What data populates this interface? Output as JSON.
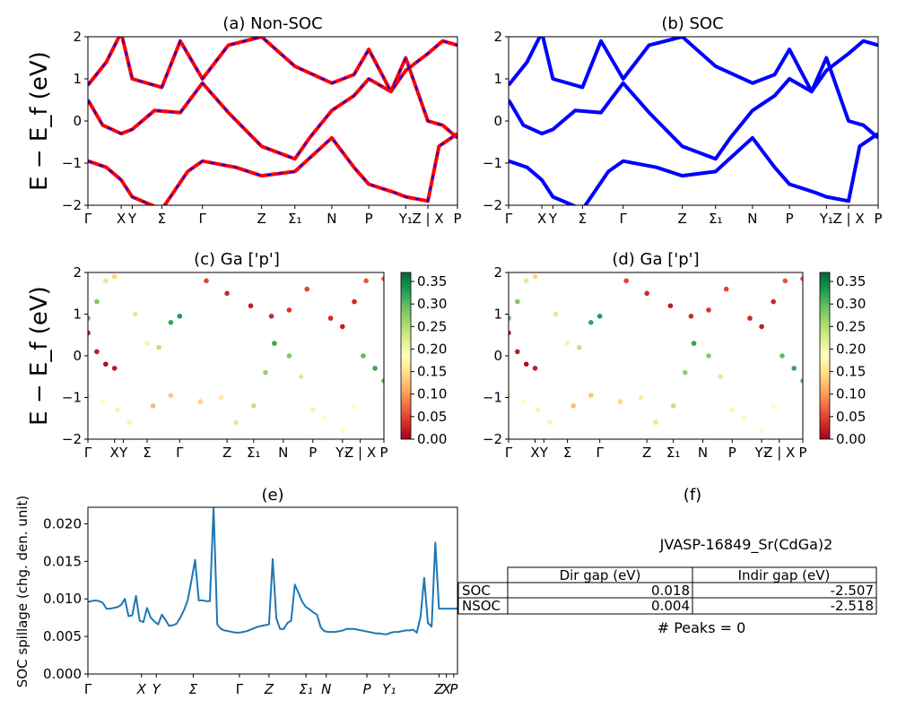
{
  "figure": {
    "title": "JVASP-16849_Sr(CdGa)2"
  },
  "path_labels": [
    "Γ",
    "X",
    "Y",
    "Σ",
    "Γ",
    "Z",
    "Σ₁",
    "N",
    "P",
    "Y₁",
    "Z | X",
    "P"
  ],
  "panel_a": {
    "title": "(a) Non-SOC",
    "ylabel": "E − E_f (eV)"
  },
  "panel_b": {
    "title": "(b) SOC"
  },
  "panel_c": {
    "title": "(c)  Ga ['p']",
    "ylabel": "E − E_f (eV)"
  },
  "panel_d": {
    "title": "(d) Ga ['p']"
  },
  "panel_e": {
    "title": "(e)",
    "ylabel": "SOC spillage (chg. den. unit)"
  },
  "panel_f": {
    "title": "(f)",
    "table_headers": [
      "",
      "Dir gap (eV)",
      "Indir gap (eV)"
    ],
    "rows": [
      {
        "label": "SOC",
        "dir_gap": "0.018",
        "indir_gap": "-2.507"
      },
      {
        "label": "NSOC",
        "dir_gap": "0.004",
        "indir_gap": "-2.518"
      }
    ],
    "peaks": "# Peaks = 0"
  },
  "colors": {
    "nonsoc_line": "#ff0000",
    "nonsoc_dash": "#0000ff",
    "soc_line": "#0000ff",
    "spillage_line": "#1f77b4"
  },
  "chart_data": [
    {
      "type": "line",
      "panel": "a",
      "ylim": [
        -2,
        2
      ],
      "yticks": [
        -2,
        -1,
        0,
        1,
        2
      ],
      "xticks": [
        0,
        0.09,
        0.12,
        0.2,
        0.31,
        0.47,
        0.56,
        0.66,
        0.76,
        0.86,
        0.92,
        1.0
      ],
      "series": [
        {
          "x": [
            0,
            0.05,
            0.09,
            0.12,
            0.2,
            0.27,
            0.31,
            0.4,
            0.47,
            0.56,
            0.66,
            0.72,
            0.76,
            0.83,
            0.86,
            0.92,
            0.95,
            1.0
          ],
          "y": [
            -0.95,
            -1.1,
            -1.4,
            -1.8,
            -2.1,
            -1.2,
            -0.95,
            -1.1,
            -1.3,
            -1.2,
            -0.4,
            -1.1,
            -1.5,
            -1.7,
            -1.8,
            -1.9,
            -0.6,
            -0.3
          ]
        },
        {
          "x": [
            0,
            0.04,
            0.09,
            0.12,
            0.18,
            0.25,
            0.31,
            0.38,
            0.47,
            0.56,
            0.6,
            0.66,
            0.72,
            0.76,
            0.82,
            0.86,
            0.92,
            0.96,
            1.0
          ],
          "y": [
            0.5,
            -0.1,
            -0.3,
            -0.2,
            0.25,
            0.2,
            0.9,
            0.2,
            -0.6,
            -0.9,
            -0.4,
            0.25,
            0.6,
            1.0,
            0.7,
            1.5,
            0.0,
            -0.1,
            -0.4
          ]
        },
        {
          "x": [
            0,
            0.05,
            0.09,
            0.12,
            0.2,
            0.25,
            0.31,
            0.38,
            0.47,
            0.56,
            0.66,
            0.72,
            0.76,
            0.82,
            0.86,
            0.92,
            0.96,
            1.0
          ],
          "y": [
            0.85,
            1.4,
            2.1,
            1.0,
            0.8,
            1.9,
            1.0,
            1.8,
            2.0,
            1.3,
            0.9,
            1.1,
            1.7,
            0.7,
            1.2,
            1.6,
            1.9,
            1.8
          ]
        }
      ]
    },
    {
      "type": "line",
      "panel": "b",
      "ylim": [
        -2,
        2
      ],
      "yticks": [
        -2,
        -1,
        0,
        1,
        2
      ],
      "xticks": [
        0,
        0.09,
        0.12,
        0.2,
        0.31,
        0.47,
        0.56,
        0.66,
        0.76,
        0.86,
        0.92,
        1.0
      ],
      "series": [
        {
          "x": [
            0,
            0.05,
            0.09,
            0.12,
            0.2,
            0.27,
            0.31,
            0.4,
            0.47,
            0.56,
            0.66,
            0.72,
            0.76,
            0.83,
            0.86,
            0.92,
            0.95,
            1.0
          ],
          "y": [
            -0.95,
            -1.1,
            -1.4,
            -1.8,
            -2.1,
            -1.2,
            -0.95,
            -1.1,
            -1.3,
            -1.2,
            -0.4,
            -1.1,
            -1.5,
            -1.7,
            -1.8,
            -1.9,
            -0.6,
            -0.3
          ]
        },
        {
          "x": [
            0,
            0.04,
            0.09,
            0.12,
            0.18,
            0.25,
            0.31,
            0.38,
            0.47,
            0.56,
            0.6,
            0.66,
            0.72,
            0.76,
            0.82,
            0.86,
            0.92,
            0.96,
            1.0
          ],
          "y": [
            0.5,
            -0.1,
            -0.3,
            -0.2,
            0.25,
            0.2,
            0.9,
            0.2,
            -0.6,
            -0.9,
            -0.4,
            0.25,
            0.6,
            1.0,
            0.7,
            1.5,
            0.0,
            -0.1,
            -0.4
          ]
        },
        {
          "x": [
            0,
            0.05,
            0.09,
            0.12,
            0.2,
            0.25,
            0.31,
            0.38,
            0.47,
            0.56,
            0.66,
            0.72,
            0.76,
            0.82,
            0.86,
            0.92,
            0.96,
            1.0
          ],
          "y": [
            0.85,
            1.4,
            2.1,
            1.0,
            0.8,
            1.9,
            1.0,
            1.8,
            2.0,
            1.3,
            0.9,
            1.1,
            1.7,
            0.7,
            1.2,
            1.6,
            1.9,
            1.8
          ]
        }
      ]
    },
    {
      "type": "scatter",
      "panel": "c",
      "ylim": [
        -2,
        2
      ],
      "yticks": [
        -2,
        -1,
        0,
        1,
        2
      ],
      "colorbar": {
        "range": [
          0,
          0.37
        ],
        "ticks": [
          0,
          0.05,
          0.1,
          0.15,
          0.2,
          0.25,
          0.3,
          0.35
        ],
        "colormap": "RdYlGn"
      },
      "points": [
        {
          "x": 0.0,
          "y": 0.55,
          "c": 0.02
        },
        {
          "x": 0.03,
          "y": 0.1,
          "c": 0.02
        },
        {
          "x": 0.06,
          "y": -0.2,
          "c": 0.01
        },
        {
          "x": 0.09,
          "y": -0.3,
          "c": 0.02
        },
        {
          "x": 0.0,
          "y": 0.9,
          "c": 0.3
        },
        {
          "x": 0.03,
          "y": 1.3,
          "c": 0.28
        },
        {
          "x": 0.06,
          "y": 1.8,
          "c": 0.22
        },
        {
          "x": 0.09,
          "y": 1.9,
          "c": 0.14
        },
        {
          "x": 0.0,
          "y": -0.95,
          "c": 0.16
        },
        {
          "x": 0.05,
          "y": -1.1,
          "c": 0.18
        },
        {
          "x": 0.1,
          "y": -1.3,
          "c": 0.2
        },
        {
          "x": 0.14,
          "y": -1.6,
          "c": 0.2
        },
        {
          "x": 0.16,
          "y": 1.0,
          "c": 0.22
        },
        {
          "x": 0.2,
          "y": 0.3,
          "c": 0.2
        },
        {
          "x": 0.24,
          "y": 0.2,
          "c": 0.24
        },
        {
          "x": 0.28,
          "y": 0.8,
          "c": 0.32
        },
        {
          "x": 0.31,
          "y": 0.95,
          "c": 0.33
        },
        {
          "x": 0.22,
          "y": -1.2,
          "c": 0.12
        },
        {
          "x": 0.28,
          "y": -0.95,
          "c": 0.13
        },
        {
          "x": 0.38,
          "y": -1.1,
          "c": 0.14
        },
        {
          "x": 0.45,
          "y": -1.0,
          "c": 0.16
        },
        {
          "x": 0.5,
          "y": -1.6,
          "c": 0.22
        },
        {
          "x": 0.56,
          "y": -1.2,
          "c": 0.24
        },
        {
          "x": 0.6,
          "y": -0.4,
          "c": 0.27
        },
        {
          "x": 0.63,
          "y": 0.3,
          "c": 0.32
        },
        {
          "x": 0.68,
          "y": 0.0,
          "c": 0.28
        },
        {
          "x": 0.72,
          "y": -0.5,
          "c": 0.22
        },
        {
          "x": 0.76,
          "y": -1.3,
          "c": 0.2
        },
        {
          "x": 0.8,
          "y": -1.5,
          "c": 0.18
        },
        {
          "x": 0.86,
          "y": -1.8,
          "c": 0.19
        },
        {
          "x": 0.9,
          "y": -1.2,
          "c": 0.19
        },
        {
          "x": 0.4,
          "y": 1.8,
          "c": 0.05
        },
        {
          "x": 0.47,
          "y": 1.5,
          "c": 0.03
        },
        {
          "x": 0.55,
          "y": 1.2,
          "c": 0.02
        },
        {
          "x": 0.62,
          "y": 0.95,
          "c": 0.03
        },
        {
          "x": 0.68,
          "y": 1.1,
          "c": 0.04
        },
        {
          "x": 0.74,
          "y": 1.6,
          "c": 0.05
        },
        {
          "x": 0.82,
          "y": 0.9,
          "c": 0.03
        },
        {
          "x": 0.86,
          "y": 0.7,
          "c": 0.02
        },
        {
          "x": 0.9,
          "y": 1.3,
          "c": 0.03
        },
        {
          "x": 0.93,
          "y": 0.0,
          "c": 0.3
        },
        {
          "x": 0.97,
          "y": -0.3,
          "c": 0.32
        },
        {
          "x": 1.0,
          "y": -0.6,
          "c": 0.3
        },
        {
          "x": 0.94,
          "y": 1.8,
          "c": 0.06
        },
        {
          "x": 1.0,
          "y": 1.85,
          "c": 0.06
        }
      ]
    },
    {
      "type": "scatter",
      "panel": "d",
      "ylim": [
        -2,
        2
      ],
      "yticks": [
        -2,
        -1,
        0,
        1,
        2
      ],
      "colorbar": {
        "range": [
          0,
          0.37
        ],
        "ticks": [
          0,
          0.05,
          0.1,
          0.15,
          0.2,
          0.25,
          0.3,
          0.35
        ],
        "colormap": "RdYlGn"
      },
      "points": [
        {
          "x": 0.0,
          "y": 0.55,
          "c": 0.02
        },
        {
          "x": 0.03,
          "y": 0.1,
          "c": 0.02
        },
        {
          "x": 0.06,
          "y": -0.2,
          "c": 0.01
        },
        {
          "x": 0.09,
          "y": -0.3,
          "c": 0.02
        },
        {
          "x": 0.0,
          "y": 0.9,
          "c": 0.3
        },
        {
          "x": 0.03,
          "y": 1.3,
          "c": 0.28
        },
        {
          "x": 0.06,
          "y": 1.8,
          "c": 0.22
        },
        {
          "x": 0.09,
          "y": 1.9,
          "c": 0.14
        },
        {
          "x": 0.0,
          "y": -0.95,
          "c": 0.16
        },
        {
          "x": 0.05,
          "y": -1.1,
          "c": 0.18
        },
        {
          "x": 0.1,
          "y": -1.3,
          "c": 0.2
        },
        {
          "x": 0.14,
          "y": -1.6,
          "c": 0.2
        },
        {
          "x": 0.16,
          "y": 1.0,
          "c": 0.22
        },
        {
          "x": 0.2,
          "y": 0.3,
          "c": 0.2
        },
        {
          "x": 0.24,
          "y": 0.2,
          "c": 0.24
        },
        {
          "x": 0.28,
          "y": 0.8,
          "c": 0.32
        },
        {
          "x": 0.31,
          "y": 0.95,
          "c": 0.33
        },
        {
          "x": 0.22,
          "y": -1.2,
          "c": 0.12
        },
        {
          "x": 0.28,
          "y": -0.95,
          "c": 0.13
        },
        {
          "x": 0.38,
          "y": -1.1,
          "c": 0.14
        },
        {
          "x": 0.45,
          "y": -1.0,
          "c": 0.16
        },
        {
          "x": 0.5,
          "y": -1.6,
          "c": 0.22
        },
        {
          "x": 0.56,
          "y": -1.2,
          "c": 0.24
        },
        {
          "x": 0.6,
          "y": -0.4,
          "c": 0.27
        },
        {
          "x": 0.63,
          "y": 0.3,
          "c": 0.32
        },
        {
          "x": 0.68,
          "y": 0.0,
          "c": 0.28
        },
        {
          "x": 0.72,
          "y": -0.5,
          "c": 0.22
        },
        {
          "x": 0.76,
          "y": -1.3,
          "c": 0.2
        },
        {
          "x": 0.8,
          "y": -1.5,
          "c": 0.18
        },
        {
          "x": 0.86,
          "y": -1.8,
          "c": 0.19
        },
        {
          "x": 0.9,
          "y": -1.2,
          "c": 0.19
        },
        {
          "x": 0.4,
          "y": 1.8,
          "c": 0.05
        },
        {
          "x": 0.47,
          "y": 1.5,
          "c": 0.03
        },
        {
          "x": 0.55,
          "y": 1.2,
          "c": 0.02
        },
        {
          "x": 0.62,
          "y": 0.95,
          "c": 0.03
        },
        {
          "x": 0.68,
          "y": 1.1,
          "c": 0.04
        },
        {
          "x": 0.74,
          "y": 1.6,
          "c": 0.05
        },
        {
          "x": 0.82,
          "y": 0.9,
          "c": 0.03
        },
        {
          "x": 0.86,
          "y": 0.7,
          "c": 0.02
        },
        {
          "x": 0.9,
          "y": 1.3,
          "c": 0.03
        },
        {
          "x": 0.93,
          "y": 0.0,
          "c": 0.3
        },
        {
          "x": 0.97,
          "y": -0.3,
          "c": 0.32
        },
        {
          "x": 1.0,
          "y": -0.6,
          "c": 0.3
        },
        {
          "x": 0.94,
          "y": 1.8,
          "c": 0.06
        },
        {
          "x": 1.0,
          "y": 1.85,
          "c": 0.06
        }
      ]
    },
    {
      "type": "line",
      "panel": "e",
      "ylim": [
        0,
        0.0222
      ],
      "yticks": [
        0.0,
        0.005,
        0.01,
        0.015,
        0.02
      ],
      "ytick_labels": [
        "0.000",
        "0.005",
        "0.010",
        "0.015",
        "0.020"
      ],
      "x": [
        0,
        0.01,
        0.02,
        0.03,
        0.04,
        0.05,
        0.06,
        0.07,
        0.08,
        0.09,
        0.1,
        0.11,
        0.12,
        0.13,
        0.14,
        0.15,
        0.16,
        0.17,
        0.18,
        0.19,
        0.2,
        0.21,
        0.22,
        0.23,
        0.24,
        0.25,
        0.26,
        0.27,
        0.28,
        0.29,
        0.3,
        0.31,
        0.32,
        0.33,
        0.34,
        0.35,
        0.36,
        0.37,
        0.38,
        0.39,
        0.4,
        0.41,
        0.42,
        0.43,
        0.44,
        0.45,
        0.46,
        0.47,
        0.48,
        0.49,
        0.5,
        0.51,
        0.52,
        0.53,
        0.54,
        0.55,
        0.56,
        0.57,
        0.58,
        0.59,
        0.6,
        0.61,
        0.62,
        0.63,
        0.64,
        0.65,
        0.66,
        0.67,
        0.68,
        0.69,
        0.7,
        0.71,
        0.72,
        0.73,
        0.74,
        0.75,
        0.76,
        0.77,
        0.78,
        0.79,
        0.8,
        0.81,
        0.82,
        0.83,
        0.84,
        0.85,
        0.86,
        0.87,
        0.88,
        0.89,
        0.9,
        0.91,
        0.92,
        0.93,
        0.94,
        0.95,
        0.96,
        0.97,
        0.98,
        0.99,
        1.0
      ],
      "values": [
        0.0096,
        0.0097,
        0.0098,
        0.0097,
        0.0095,
        0.0087,
        0.0087,
        0.0088,
        0.0089,
        0.0092,
        0.01,
        0.0077,
        0.0078,
        0.0104,
        0.0071,
        0.0069,
        0.0088,
        0.0075,
        0.007,
        0.0066,
        0.0079,
        0.0072,
        0.0064,
        0.0065,
        0.0067,
        0.0075,
        0.0085,
        0.0098,
        0.0124,
        0.0152,
        0.0098,
        0.0098,
        0.0097,
        0.0097,
        0.0222,
        0.0066,
        0.006,
        0.0058,
        0.0057,
        0.0056,
        0.0055,
        0.0055,
        0.0056,
        0.0057,
        0.0059,
        0.0061,
        0.0063,
        0.0064,
        0.0065,
        0.0066,
        0.0153,
        0.0074,
        0.006,
        0.006,
        0.0068,
        0.0071,
        0.0119,
        0.0108,
        0.0096,
        0.0089,
        0.0086,
        0.0082,
        0.0079,
        0.0062,
        0.0057,
        0.0056,
        0.0056,
        0.0056,
        0.0057,
        0.0058,
        0.006,
        0.006,
        0.006,
        0.0059,
        0.0058,
        0.0057,
        0.0056,
        0.0055,
        0.0054,
        0.0054,
        0.0053,
        0.0053,
        0.0055,
        0.0056,
        0.0056,
        0.0057,
        0.0058,
        0.0058,
        0.0059,
        0.0055,
        0.0076,
        0.0128,
        0.0068,
        0.0063,
        0.0175,
        0.0087,
        0.0087,
        0.0087,
        0.0087,
        0.0087,
        0.0087
      ],
      "xtick_positions": [
        0,
        0.145,
        0.185,
        0.285,
        0.41,
        0.49,
        0.59,
        0.645,
        0.755,
        0.815,
        0.95,
        0.97,
        0.99
      ]
    }
  ]
}
